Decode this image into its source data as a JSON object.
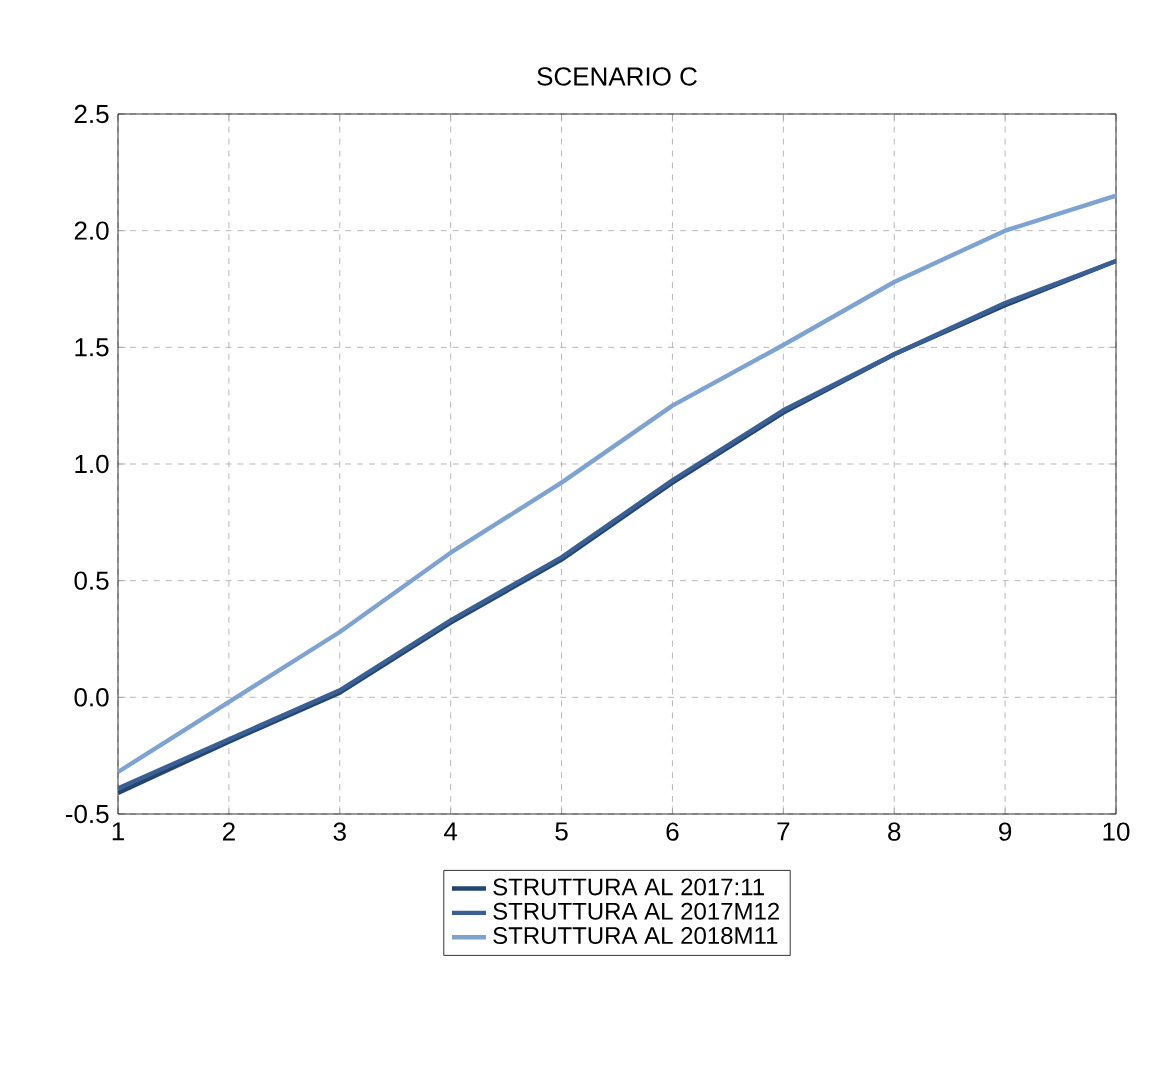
{
  "chart_data": {
    "type": "line",
    "title": "SCENARIO C",
    "x": [
      1,
      2,
      3,
      4,
      5,
      6,
      7,
      8,
      9,
      10
    ],
    "series": [
      {
        "name": "STRUTTURA AL 2017:11",
        "color": "#24466e",
        "values": [
          -0.41,
          -0.19,
          0.02,
          0.32,
          0.59,
          0.92,
          1.22,
          1.47,
          1.68,
          1.87
        ]
      },
      {
        "name": "STRUTTURA AL 2017M12",
        "color": "#3a5f94",
        "values": [
          -0.39,
          -0.18,
          0.03,
          0.33,
          0.6,
          0.93,
          1.23,
          1.47,
          1.69,
          1.87
        ]
      },
      {
        "name": "STRUTTURA AL 2018M11",
        "color": "#7fa3d1",
        "values": [
          -0.32,
          -0.02,
          0.28,
          0.62,
          0.92,
          1.25,
          1.51,
          1.78,
          2.0,
          2.15
        ]
      }
    ],
    "xlim": [
      1,
      10
    ],
    "xticks": [
      1,
      2,
      3,
      4,
      5,
      6,
      7,
      8,
      9,
      10
    ],
    "ylim": [
      -0.5,
      2.5
    ],
    "yticks": [
      {
        "value": -0.5,
        "label": "-0.5"
      },
      {
        "value": 0,
        "label": "0.0"
      },
      {
        "value": 0.5,
        "label": "0.5"
      },
      {
        "value": 1,
        "label": "1.0"
      },
      {
        "value": 1.5,
        "label": "1.5"
      },
      {
        "value": 2,
        "label": "2.0"
      },
      {
        "value": 2.5,
        "label": "2.5"
      }
    ],
    "grid": true,
    "legend": "bottom",
    "marker": "none",
    "line_style": "solid"
  }
}
